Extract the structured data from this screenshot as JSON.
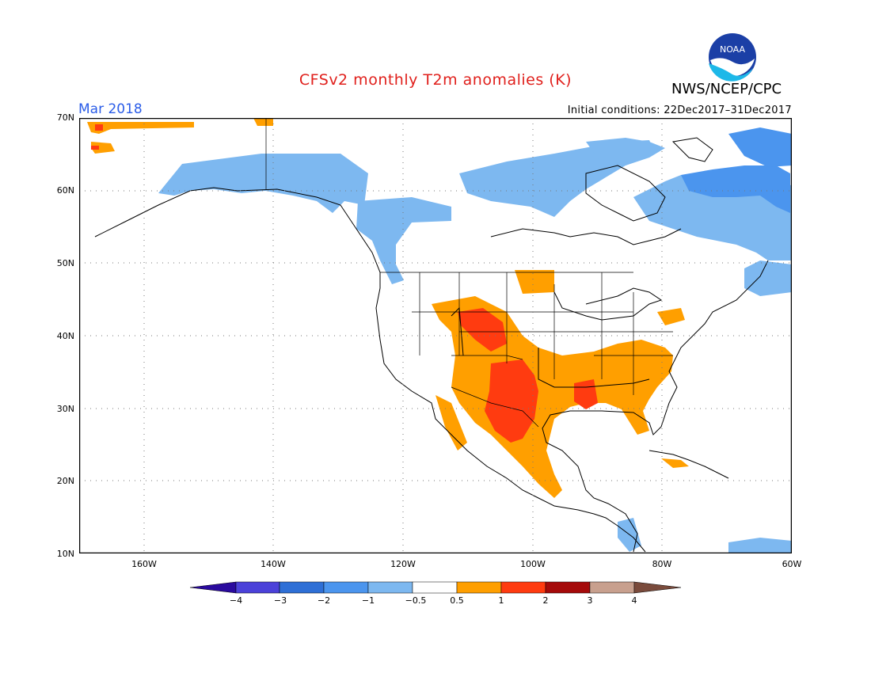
{
  "title": "CFSv2 monthly T2m anomalies (K)",
  "agency": "NWS/NCEP/CPC",
  "logo_text": "NOAA",
  "valid_month": "Mar 2018",
  "initial_conditions": "Initial conditions: 22Dec2017–31Dec2017",
  "lat_labels": [
    "70N",
    "60N",
    "50N",
    "40N",
    "30N",
    "20N",
    "10N"
  ],
  "lon_labels": [
    "160W",
    "140W",
    "120W",
    "100W",
    "80W",
    "60W"
  ],
  "map_extent": {
    "lon_min": -170,
    "lon_max": -60,
    "lat_min": 10,
    "lat_max": 70
  },
  "colorbar": {
    "levels": [
      "−4",
      "−3",
      "−2",
      "−1",
      "−0.5",
      "0.5",
      "1",
      "2",
      "3",
      "4"
    ],
    "colors": [
      "#2a0a9e",
      "#4b41d9",
      "#2e6fd6",
      "#4b95ee",
      "#7db8f0",
      "#ffffff",
      "#ff9f00",
      "#ff3b10",
      "#a50a0a",
      "#c8a08e",
      "#7a4b3c"
    ]
  },
  "anomaly_regions": [
    {
      "category": "-0.5 to -1",
      "color": "#7db8f0",
      "lon": [
        -155,
        -113
      ],
      "lat": [
        58,
        65
      ]
    },
    {
      "category": "-0.5 to -1",
      "color": "#7db8f0",
      "lon": [
        -105,
        -76
      ],
      "lat": [
        57,
        65
      ]
    },
    {
      "category": "-1 to -2",
      "color": "#4b95ee",
      "lon": [
        -80,
        -60
      ],
      "lat": [
        51,
        62
      ]
    },
    {
      "category": "0.5 to 1",
      "color": "#ff9f00",
      "lon": [
        -112,
        -80
      ],
      "lat": [
        25,
        44
      ]
    },
    {
      "category": "1 to 2",
      "color": "#ff3b10",
      "lon": [
        -108,
        -100
      ],
      "lat": [
        27,
        34
      ]
    },
    {
      "category": "1 to 2",
      "color": "#ff3b10",
      "lon": [
        -110,
        -104
      ],
      "lat": [
        39,
        42
      ]
    }
  ]
}
